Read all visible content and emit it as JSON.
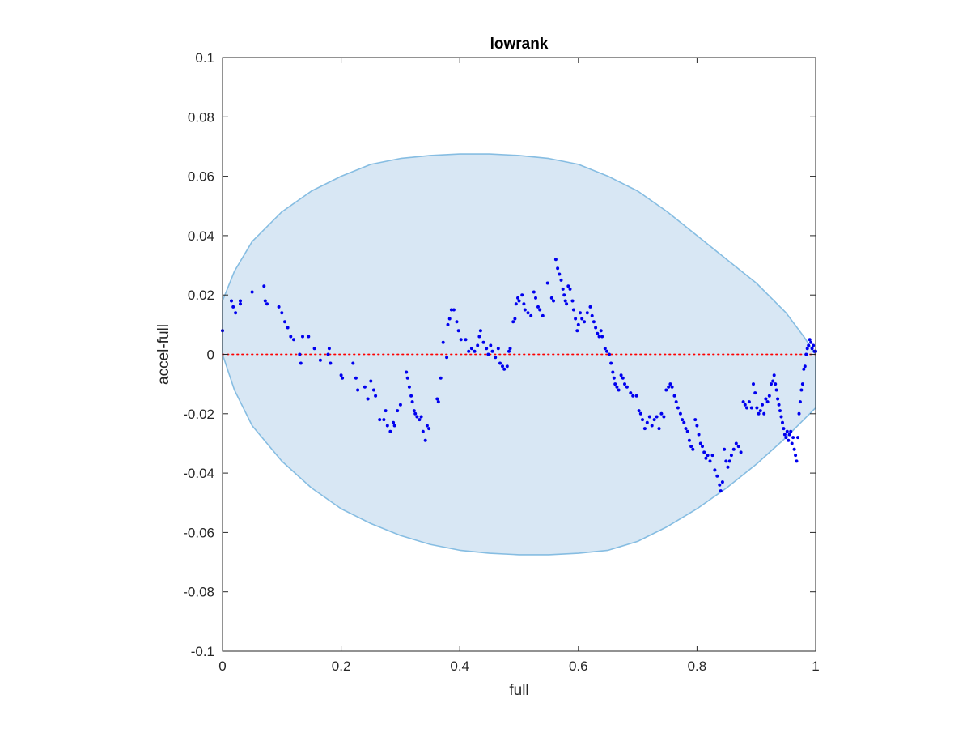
{
  "chart_data": {
    "type": "scatter",
    "title": "lowrank",
    "xlabel": "full",
    "ylabel": "accel-full",
    "xlim": [
      0,
      1
    ],
    "ylim": [
      -0.1,
      0.1
    ],
    "xticks": [
      0,
      0.2,
      0.4,
      0.6,
      0.8,
      1
    ],
    "xtick_labels": [
      "0",
      "0.2",
      "0.4",
      "0.6",
      "0.8",
      "1"
    ],
    "yticks": [
      0.1,
      0.08,
      0.06,
      0.04,
      0.02,
      0,
      -0.02,
      -0.04,
      -0.06,
      -0.08,
      -0.1
    ],
    "ytick_labels": [
      "0.1",
      "0.08",
      "0.06",
      "0.04",
      "0.02",
      "0",
      "-0.02",
      "-0.04",
      "-0.06",
      "-0.08",
      "-0.1"
    ],
    "grid": false,
    "zero_line": {
      "y": 0,
      "style": "dotted",
      "color": "#ff0000"
    },
    "region": {
      "shape": "ellipse-like envelope",
      "x": [
        0,
        0.02,
        0.05,
        0.1,
        0.15,
        0.2,
        0.25,
        0.3,
        0.35,
        0.4,
        0.45,
        0.5,
        0.55,
        0.6,
        0.65,
        0.7,
        0.75,
        0.8,
        0.85,
        0.9,
        0.95,
        0.98,
        1.0
      ],
      "upper": [
        0.018,
        0.028,
        0.038,
        0.048,
        0.055,
        0.06,
        0.064,
        0.066,
        0.067,
        0.0675,
        0.0675,
        0.067,
        0.066,
        0.064,
        0.06,
        0.055,
        0.048,
        0.04,
        0.032,
        0.024,
        0.014,
        0.006,
        0.0
      ],
      "lower": [
        0.0,
        -0.012,
        -0.024,
        -0.036,
        -0.045,
        -0.052,
        -0.057,
        -0.061,
        -0.064,
        -0.066,
        -0.067,
        -0.0675,
        -0.0675,
        -0.067,
        -0.066,
        -0.063,
        -0.058,
        -0.052,
        -0.045,
        -0.037,
        -0.028,
        -0.022,
        -0.018
      ],
      "fill": "#d8e7f4",
      "edge": "#86bde2"
    },
    "series": [
      {
        "color": "#0000ee",
        "points": [
          [
            0.0,
            0.008
          ],
          [
            0.015,
            0.018
          ],
          [
            0.018,
            0.016
          ],
          [
            0.022,
            0.014
          ],
          [
            0.03,
            0.018
          ],
          [
            0.03,
            0.017
          ],
          [
            0.05,
            0.021
          ],
          [
            0.07,
            0.023
          ],
          [
            0.072,
            0.018
          ],
          [
            0.075,
            0.017
          ],
          [
            0.095,
            0.016
          ],
          [
            0.1,
            0.014
          ],
          [
            0.105,
            0.011
          ],
          [
            0.11,
            0.009
          ],
          [
            0.115,
            0.006
          ],
          [
            0.12,
            0.005
          ],
          [
            0.13,
            0.0
          ],
          [
            0.132,
            -0.003
          ],
          [
            0.135,
            0.006
          ],
          [
            0.145,
            0.006
          ],
          [
            0.155,
            0.002
          ],
          [
            0.165,
            -0.002
          ],
          [
            0.178,
            0.0
          ],
          [
            0.18,
            0.002
          ],
          [
            0.182,
            -0.003
          ],
          [
            0.2,
            -0.007
          ],
          [
            0.202,
            -0.008
          ],
          [
            0.22,
            -0.003
          ],
          [
            0.225,
            -0.008
          ],
          [
            0.228,
            -0.012
          ],
          [
            0.24,
            -0.011
          ],
          [
            0.245,
            -0.015
          ],
          [
            0.25,
            -0.009
          ],
          [
            0.255,
            -0.012
          ],
          [
            0.258,
            -0.014
          ],
          [
            0.265,
            -0.022
          ],
          [
            0.272,
            -0.022
          ],
          [
            0.275,
            -0.019
          ],
          [
            0.278,
            -0.024
          ],
          [
            0.283,
            -0.026
          ],
          [
            0.288,
            -0.023
          ],
          [
            0.29,
            -0.024
          ],
          [
            0.295,
            -0.019
          ],
          [
            0.3,
            -0.017
          ],
          [
            0.31,
            -0.006
          ],
          [
            0.312,
            -0.008
          ],
          [
            0.315,
            -0.011
          ],
          [
            0.318,
            -0.014
          ],
          [
            0.32,
            -0.016
          ],
          [
            0.323,
            -0.019
          ],
          [
            0.325,
            -0.02
          ],
          [
            0.328,
            -0.021
          ],
          [
            0.332,
            -0.022
          ],
          [
            0.335,
            -0.021
          ],
          [
            0.338,
            -0.026
          ],
          [
            0.342,
            -0.029
          ],
          [
            0.345,
            -0.024
          ],
          [
            0.348,
            -0.025
          ],
          [
            0.362,
            -0.015
          ],
          [
            0.364,
            -0.016
          ],
          [
            0.368,
            -0.008
          ],
          [
            0.372,
            0.004
          ],
          [
            0.378,
            -0.001
          ],
          [
            0.38,
            0.01
          ],
          [
            0.383,
            0.012
          ],
          [
            0.386,
            0.015
          ],
          [
            0.39,
            0.015
          ],
          [
            0.395,
            0.011
          ],
          [
            0.398,
            0.008
          ],
          [
            0.402,
            0.005
          ],
          [
            0.41,
            0.005
          ],
          [
            0.415,
            0.001
          ],
          [
            0.42,
            0.002
          ],
          [
            0.425,
            0.001
          ],
          [
            0.43,
            0.003
          ],
          [
            0.433,
            0.006
          ],
          [
            0.435,
            0.008
          ],
          [
            0.44,
            0.004
          ],
          [
            0.445,
            0.002
          ],
          [
            0.448,
            0.0
          ],
          [
            0.452,
            0.003
          ],
          [
            0.455,
            0.001
          ],
          [
            0.46,
            -0.001
          ],
          [
            0.465,
            0.002
          ],
          [
            0.468,
            -0.003
          ],
          [
            0.472,
            -0.004
          ],
          [
            0.475,
            -0.005
          ],
          [
            0.48,
            -0.004
          ],
          [
            0.483,
            0.001
          ],
          [
            0.485,
            0.002
          ],
          [
            0.49,
            0.011
          ],
          [
            0.493,
            0.012
          ],
          [
            0.495,
            0.017
          ],
          [
            0.498,
            0.019
          ],
          [
            0.5,
            0.018
          ],
          [
            0.505,
            0.02
          ],
          [
            0.508,
            0.017
          ],
          [
            0.51,
            0.015
          ],
          [
            0.515,
            0.014
          ],
          [
            0.52,
            0.013
          ],
          [
            0.525,
            0.021
          ],
          [
            0.528,
            0.019
          ],
          [
            0.532,
            0.016
          ],
          [
            0.535,
            0.015
          ],
          [
            0.54,
            0.013
          ],
          [
            0.548,
            0.024
          ],
          [
            0.555,
            0.019
          ],
          [
            0.558,
            0.018
          ],
          [
            0.562,
            0.032
          ],
          [
            0.565,
            0.029
          ],
          [
            0.568,
            0.027
          ],
          [
            0.571,
            0.025
          ],
          [
            0.574,
            0.022
          ],
          [
            0.576,
            0.02
          ],
          [
            0.578,
            0.018
          ],
          [
            0.58,
            0.017
          ],
          [
            0.583,
            0.023
          ],
          [
            0.586,
            0.022
          ],
          [
            0.59,
            0.018
          ],
          [
            0.592,
            0.015
          ],
          [
            0.595,
            0.012
          ],
          [
            0.598,
            0.008
          ],
          [
            0.6,
            0.01
          ],
          [
            0.603,
            0.014
          ],
          [
            0.606,
            0.012
          ],
          [
            0.61,
            0.011
          ],
          [
            0.615,
            0.014
          ],
          [
            0.62,
            0.016
          ],
          [
            0.623,
            0.013
          ],
          [
            0.626,
            0.011
          ],
          [
            0.629,
            0.009
          ],
          [
            0.632,
            0.007
          ],
          [
            0.635,
            0.006
          ],
          [
            0.638,
            0.008
          ],
          [
            0.64,
            0.006
          ],
          [
            0.645,
            0.002
          ],
          [
            0.648,
            0.001
          ],
          [
            0.652,
            0.0
          ],
          [
            0.655,
            -0.003
          ],
          [
            0.658,
            -0.006
          ],
          [
            0.66,
            -0.008
          ],
          [
            0.662,
            -0.01
          ],
          [
            0.665,
            -0.011
          ],
          [
            0.668,
            -0.012
          ],
          [
            0.672,
            -0.007
          ],
          [
            0.675,
            -0.008
          ],
          [
            0.678,
            -0.01
          ],
          [
            0.682,
            -0.011
          ],
          [
            0.688,
            -0.013
          ],
          [
            0.692,
            -0.014
          ],
          [
            0.698,
            -0.014
          ],
          [
            0.702,
            -0.019
          ],
          [
            0.705,
            -0.02
          ],
          [
            0.708,
            -0.022
          ],
          [
            0.712,
            -0.025
          ],
          [
            0.716,
            -0.023
          ],
          [
            0.72,
            -0.021
          ],
          [
            0.724,
            -0.024
          ],
          [
            0.728,
            -0.022
          ],
          [
            0.732,
            -0.021
          ],
          [
            0.736,
            -0.025
          ],
          [
            0.74,
            -0.02
          ],
          [
            0.744,
            -0.021
          ],
          [
            0.748,
            -0.012
          ],
          [
            0.752,
            -0.011
          ],
          [
            0.755,
            -0.01
          ],
          [
            0.758,
            -0.011
          ],
          [
            0.762,
            -0.014
          ],
          [
            0.765,
            -0.016
          ],
          [
            0.768,
            -0.018
          ],
          [
            0.772,
            -0.02
          ],
          [
            0.775,
            -0.022
          ],
          [
            0.778,
            -0.023
          ],
          [
            0.781,
            -0.025
          ],
          [
            0.784,
            -0.026
          ],
          [
            0.787,
            -0.029
          ],
          [
            0.79,
            -0.031
          ],
          [
            0.793,
            -0.032
          ],
          [
            0.797,
            -0.022
          ],
          [
            0.8,
            -0.024
          ],
          [
            0.803,
            -0.027
          ],
          [
            0.806,
            -0.03
          ],
          [
            0.809,
            -0.031
          ],
          [
            0.812,
            -0.033
          ],
          [
            0.815,
            -0.035
          ],
          [
            0.818,
            -0.034
          ],
          [
            0.822,
            -0.036
          ],
          [
            0.826,
            -0.034
          ],
          [
            0.83,
            -0.039
          ],
          [
            0.834,
            -0.041
          ],
          [
            0.838,
            -0.044
          ],
          [
            0.84,
            -0.046
          ],
          [
            0.843,
            -0.043
          ],
          [
            0.846,
            -0.032
          ],
          [
            0.849,
            -0.036
          ],
          [
            0.852,
            -0.038
          ],
          [
            0.855,
            -0.036
          ],
          [
            0.858,
            -0.034
          ],
          [
            0.862,
            -0.032
          ],
          [
            0.866,
            -0.03
          ],
          [
            0.87,
            -0.031
          ],
          [
            0.874,
            -0.033
          ],
          [
            0.878,
            -0.016
          ],
          [
            0.881,
            -0.017
          ],
          [
            0.884,
            -0.018
          ],
          [
            0.888,
            -0.016
          ],
          [
            0.892,
            -0.018
          ],
          [
            0.895,
            -0.01
          ],
          [
            0.898,
            -0.013
          ],
          [
            0.901,
            -0.018
          ],
          [
            0.904,
            -0.02
          ],
          [
            0.907,
            -0.019
          ],
          [
            0.91,
            -0.017
          ],
          [
            0.913,
            -0.02
          ],
          [
            0.916,
            -0.015
          ],
          [
            0.919,
            -0.016
          ],
          [
            0.922,
            -0.014
          ],
          [
            0.925,
            -0.01
          ],
          [
            0.928,
            -0.009
          ],
          [
            0.93,
            -0.007
          ],
          [
            0.932,
            -0.01
          ],
          [
            0.934,
            -0.012
          ],
          [
            0.936,
            -0.015
          ],
          [
            0.938,
            -0.017
          ],
          [
            0.94,
            -0.019
          ],
          [
            0.942,
            -0.021
          ],
          [
            0.944,
            -0.023
          ],
          [
            0.946,
            -0.025
          ],
          [
            0.948,
            -0.027
          ],
          [
            0.95,
            -0.028
          ],
          [
            0.952,
            -0.026
          ],
          [
            0.954,
            -0.029
          ],
          [
            0.956,
            -0.027
          ],
          [
            0.958,
            -0.026
          ],
          [
            0.96,
            -0.03
          ],
          [
            0.962,
            -0.028
          ],
          [
            0.964,
            -0.032
          ],
          [
            0.966,
            -0.034
          ],
          [
            0.968,
            -0.036
          ],
          [
            0.97,
            -0.028
          ],
          [
            0.972,
            -0.02
          ],
          [
            0.974,
            -0.016
          ],
          [
            0.976,
            -0.012
          ],
          [
            0.978,
            -0.01
          ],
          [
            0.98,
            -0.005
          ],
          [
            0.982,
            -0.004
          ],
          [
            0.984,
            0.0
          ],
          [
            0.986,
            0.002
          ],
          [
            0.988,
            0.003
          ],
          [
            0.99,
            0.005
          ],
          [
            0.992,
            0.004
          ],
          [
            0.994,
            0.002
          ],
          [
            0.996,
            0.003
          ],
          [
            0.998,
            0.001
          ],
          [
            1.0,
            0.001
          ]
        ]
      }
    ]
  }
}
